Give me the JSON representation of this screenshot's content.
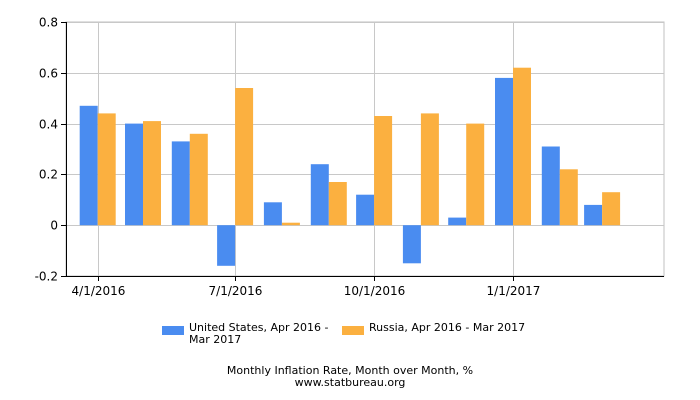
{
  "chart_data": {
    "type": "bar",
    "x": [
      "2016-04-01",
      "2016-05-01",
      "2016-06-01",
      "2016-07-01",
      "2016-08-01",
      "2016-09-01",
      "2016-10-01",
      "2016-11-01",
      "2016-12-01",
      "2017-01-01",
      "2017-02-01",
      "2017-03-01"
    ],
    "series": [
      {
        "name": "United States, Apr 2016 - Mar 2017",
        "color": "#4a8cf0",
        "values": [
          0.47,
          0.4,
          0.33,
          -0.16,
          0.09,
          0.24,
          0.12,
          -0.15,
          0.03,
          0.58,
          0.31,
          0.08
        ]
      },
      {
        "name": "Russia, Apr 2016 - Mar 2017",
        "color": "#fbb040",
        "values": [
          0.44,
          0.41,
          0.36,
          0.54,
          0.01,
          0.17,
          0.43,
          0.44,
          0.4,
          0.62,
          0.22,
          0.13
        ]
      }
    ],
    "x_tick_labels": [
      "4/1/2016",
      "7/1/2016",
      "10/1/2016",
      "1/1/2017"
    ],
    "y_tick_labels": [
      "-0.2",
      "0",
      "0.2",
      "0.4",
      "0.6",
      "0.8"
    ],
    "ylim": [
      -0.2,
      0.8
    ],
    "grid": true,
    "legend_position": "bottom",
    "title": "Monthly Inflation Rate, Month over Month, %",
    "subtitle": "www.statbureau.org"
  },
  "legend": {
    "us_label": "United States, Apr 2016 - Mar 2017",
    "ru_label": "Russia, Apr 2016 - Mar 2017"
  }
}
